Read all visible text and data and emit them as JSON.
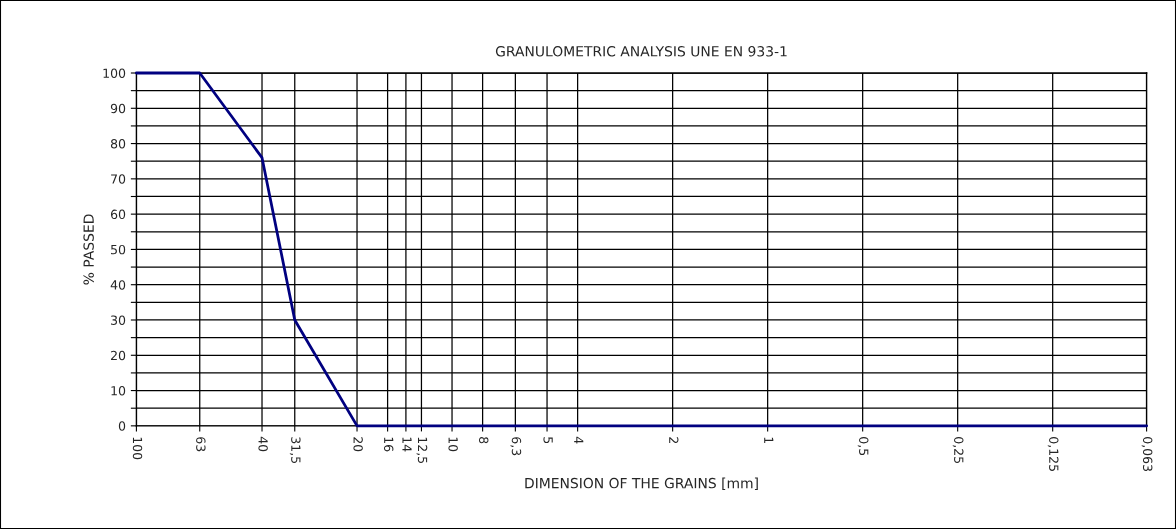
{
  "chart_data": {
    "type": "line",
    "title": "GRANULOMETRIC ANALYSIS UNE EN 933-1",
    "xlabel": "DIMENSION OF THE GRAINS [mm]",
    "ylabel": "% PASSED",
    "log": "x",
    "xlim": [
      100,
      0.063
    ],
    "ylim": [
      0,
      100
    ],
    "xticks": [
      100,
      63,
      40,
      {
        "value": 31.5,
        "label": "31,5"
      },
      20,
      16,
      14,
      {
        "value": 12.5,
        "label": "12,5"
      },
      10,
      8,
      {
        "value": 6.3,
        "label": "6,3"
      },
      5,
      4,
      2,
      1,
      {
        "value": 0.5,
        "label": "0,5"
      },
      {
        "value": 0.25,
        "label": "0,25"
      },
      {
        "value": 0.125,
        "label": "0,125"
      },
      {
        "value": 0.063,
        "label": "0,063"
      }
    ],
    "yticks": [
      0,
      {
        "value": 5,
        "label": null
      },
      10,
      {
        "value": 15,
        "label": null
      },
      20,
      {
        "value": 25,
        "label": null
      },
      30,
      {
        "value": 35,
        "label": null
      },
      40,
      {
        "value": 45,
        "label": null
      },
      50,
      {
        "value": 55,
        "label": null
      },
      60,
      {
        "value": 65,
        "label": null
      },
      70,
      {
        "value": 75,
        "label": null
      },
      80,
      {
        "value": 85,
        "label": null
      },
      90,
      {
        "value": 95,
        "label": null
      },
      100
    ],
    "grid": true,
    "marker": "none",
    "line_style": "solid",
    "series": [
      {
        "color": "#000080",
        "x": [
          100,
          63,
          40,
          31.5,
          20,
          16,
          14,
          12.5,
          10,
          8,
          6.3,
          5,
          4,
          2,
          1,
          0.5,
          0.25,
          0.125,
          0.063
        ],
        "values": [
          100,
          100,
          76,
          30,
          0,
          0,
          0,
          0,
          0,
          0,
          0,
          0,
          0,
          0,
          0,
          0,
          0,
          0,
          0
        ]
      }
    ]
  }
}
